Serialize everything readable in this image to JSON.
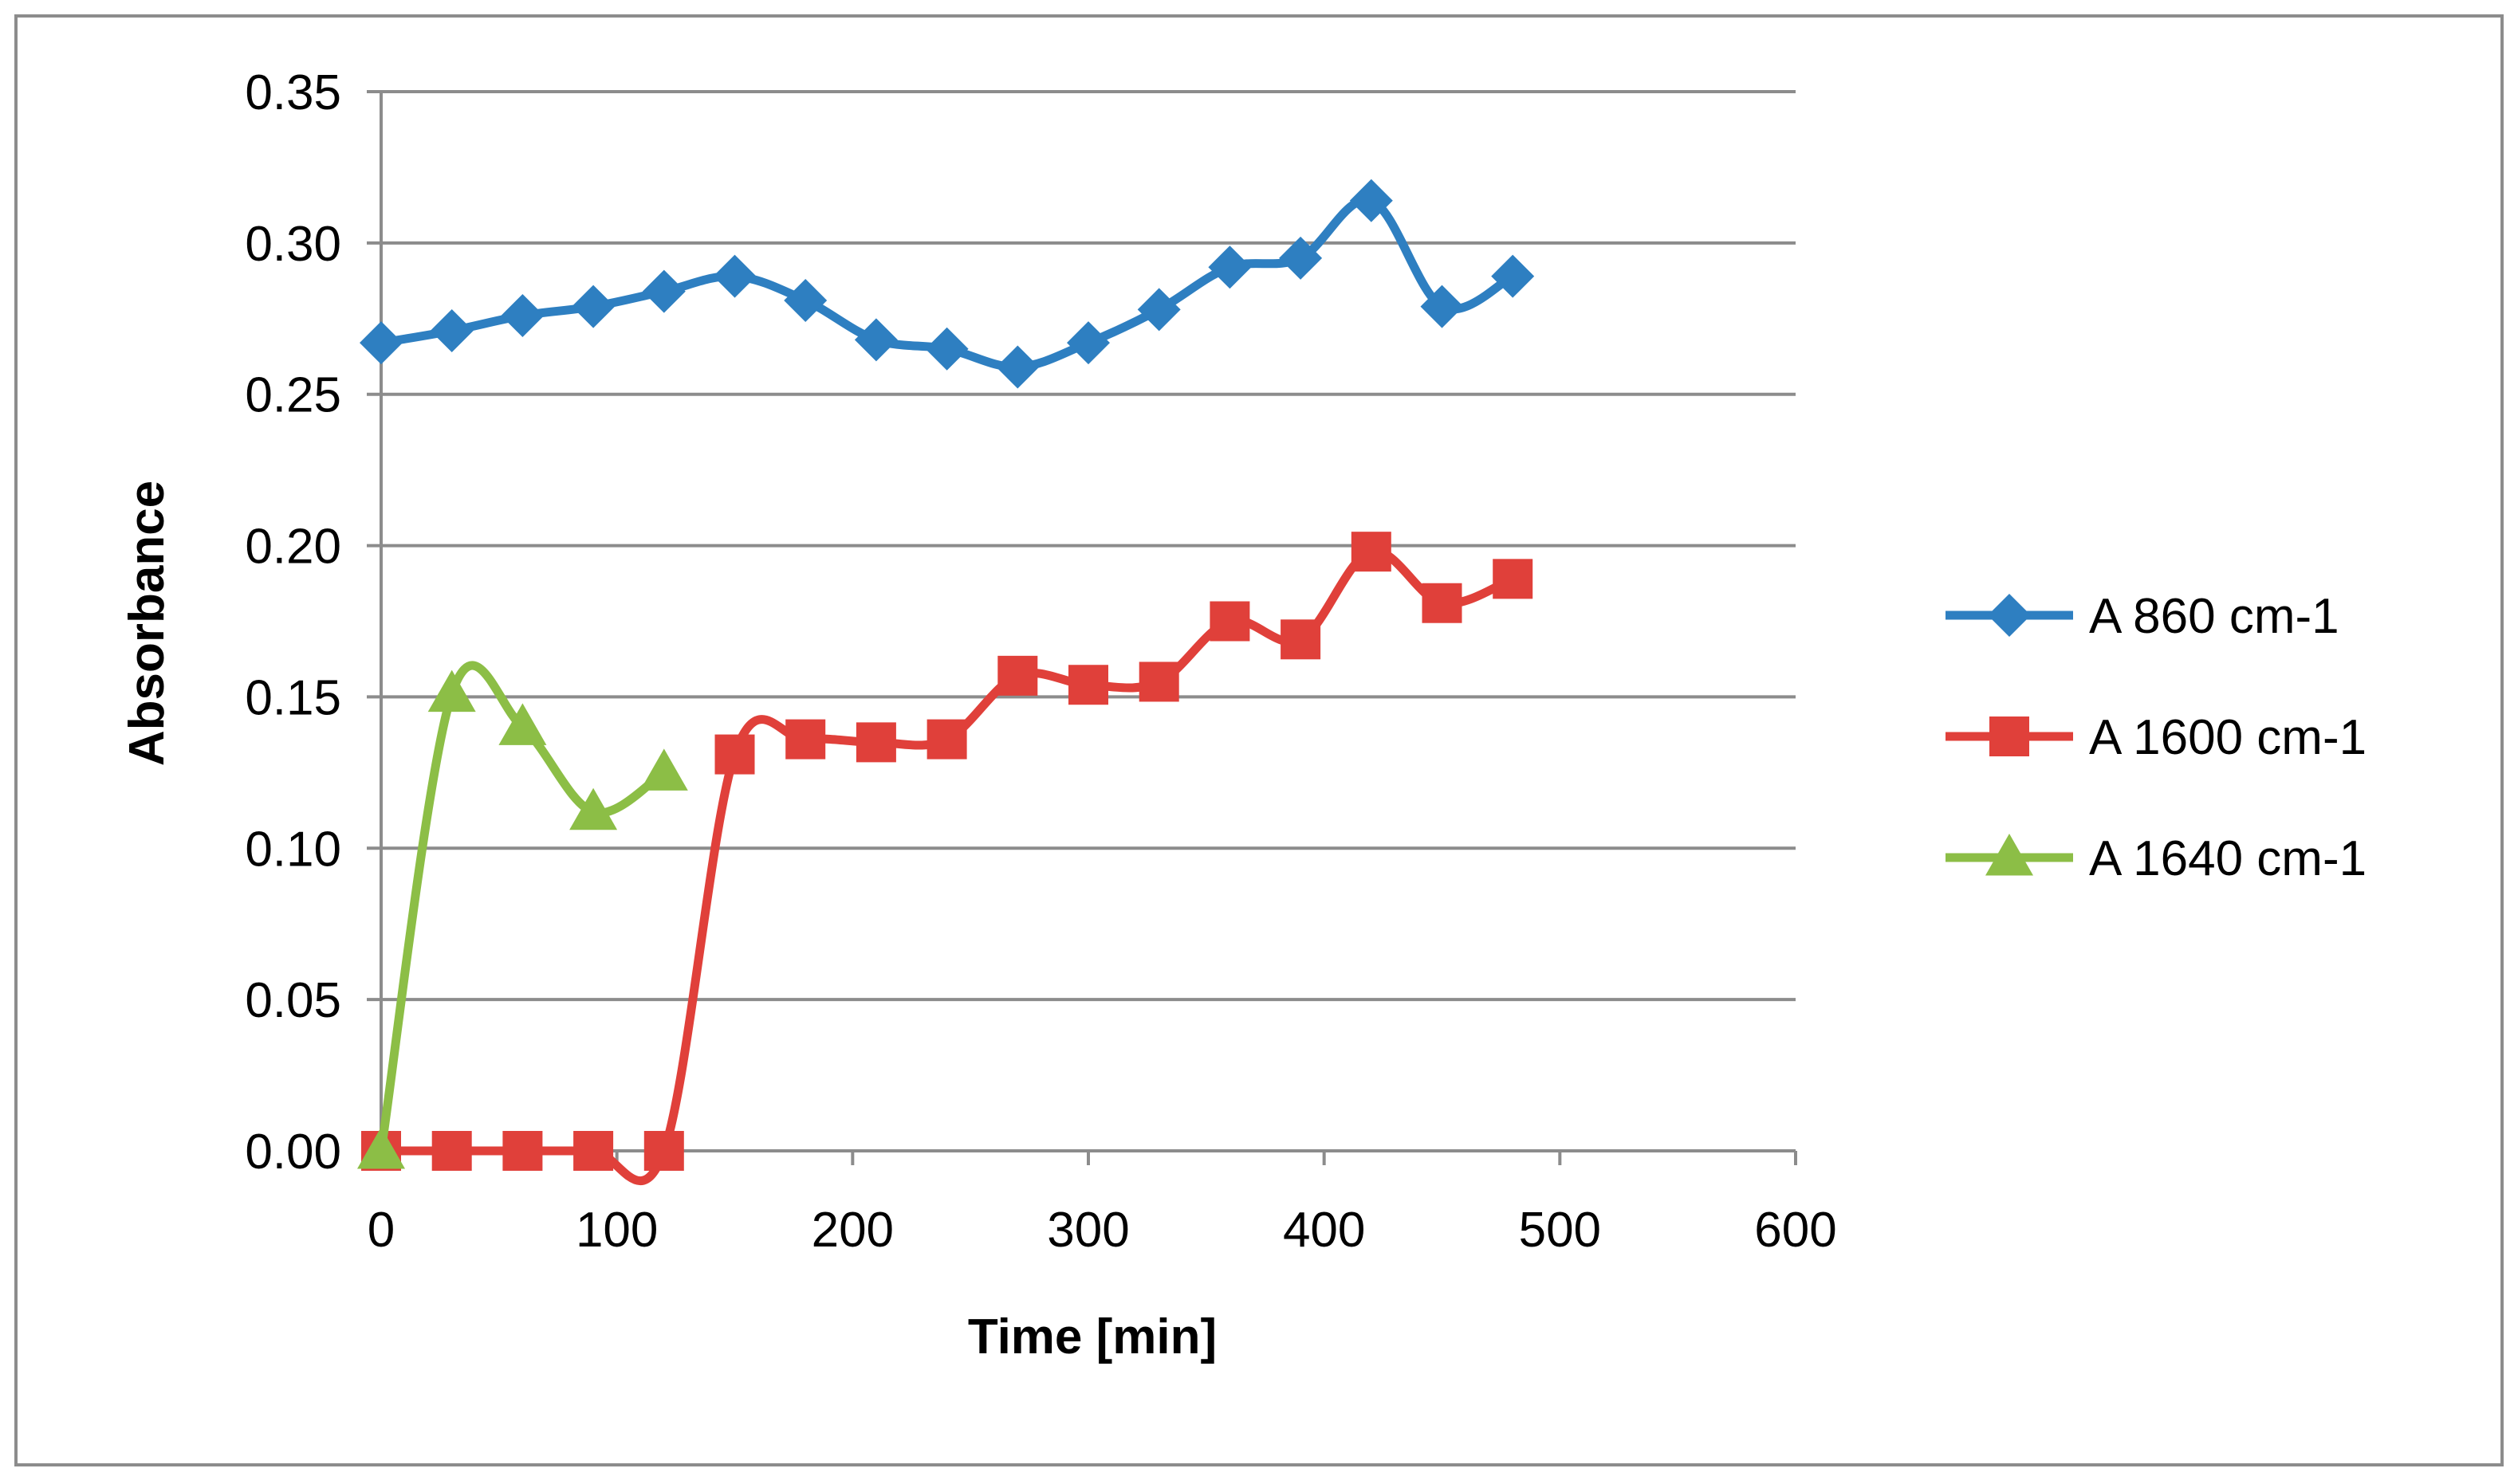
{
  "chart_data": {
    "type": "line",
    "title": "",
    "xlabel": "Time [min]",
    "ylabel": "Absorbance",
    "xlim": [
      0,
      600
    ],
    "ylim": [
      0,
      0.35
    ],
    "x_ticks": [
      "0",
      "100",
      "200",
      "300",
      "400",
      "500",
      "600"
    ],
    "y_ticks": [
      "0.00",
      "0.05",
      "0.10",
      "0.15",
      "0.20",
      "0.25",
      "0.30",
      "0.35"
    ],
    "grid": "horizontal",
    "legend_position": "right",
    "series": [
      {
        "name": "A 860 cm-1",
        "color": "#2E7FC1",
        "marker": "diamond",
        "x": [
          0,
          30,
          60,
          90,
          120,
          150,
          180,
          210,
          240,
          270,
          300,
          330,
          360,
          390,
          420,
          450,
          480
        ],
        "values": [
          0.267,
          0.271,
          0.276,
          0.279,
          0.284,
          0.289,
          0.281,
          0.268,
          0.265,
          0.259,
          0.267,
          0.278,
          0.292,
          0.295,
          0.314,
          0.279,
          0.289
        ]
      },
      {
        "name": "A 1600 cm-1",
        "color": "#E0403A",
        "marker": "square",
        "x": [
          0,
          30,
          60,
          90,
          120,
          150,
          180,
          210,
          240,
          270,
          300,
          330,
          360,
          390,
          420,
          450,
          480
        ],
        "values": [
          0,
          0,
          0,
          0,
          0,
          0.131,
          0.136,
          0.135,
          0.136,
          0.157,
          0.154,
          0.155,
          0.175,
          0.169,
          0.198,
          0.181,
          0.189
        ]
      },
      {
        "name": "A 1640 cm-1",
        "color": "#8CBE46",
        "marker": "triangle",
        "x": [
          0,
          30,
          60,
          90,
          120
        ],
        "values": [
          0,
          0.151,
          0.14,
          0.112,
          0.125
        ]
      }
    ]
  }
}
